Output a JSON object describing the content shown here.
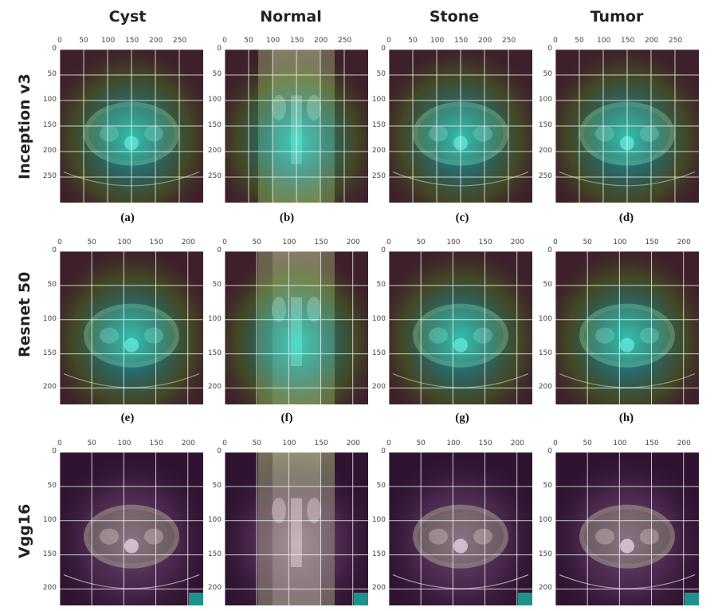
{
  "columns": [
    "Cyst",
    "Normal",
    "Stone",
    "Tumor"
  ],
  "rows": [
    {
      "label": "Inception v3",
      "xticks": [
        "0",
        "50",
        "100",
        "150",
        "200",
        "250"
      ],
      "yticks": [
        "0",
        "50",
        "100",
        "150",
        "200",
        "250"
      ],
      "xmax": 300,
      "ymax": 300,
      "sublabels": [
        "(a)",
        "(b)",
        "(c)",
        "(d)"
      ],
      "style": "green"
    },
    {
      "label": "Resnet 50",
      "xticks": [
        "0",
        "50",
        "100",
        "150",
        "200"
      ],
      "yticks": [
        "0",
        "50",
        "100",
        "150",
        "200"
      ],
      "xmax": 224,
      "ymax": 224,
      "sublabels": [
        "(e)",
        "(f)",
        "(g)",
        "(h)"
      ],
      "style": "green"
    },
    {
      "label": "Vgg16",
      "xticks": [
        "0",
        "50",
        "100",
        "150",
        "200"
      ],
      "yticks": [
        "0",
        "50",
        "100",
        "150",
        "200"
      ],
      "xmax": 224,
      "ymax": 224,
      "sublabels": [],
      "style": "purple"
    }
  ]
}
